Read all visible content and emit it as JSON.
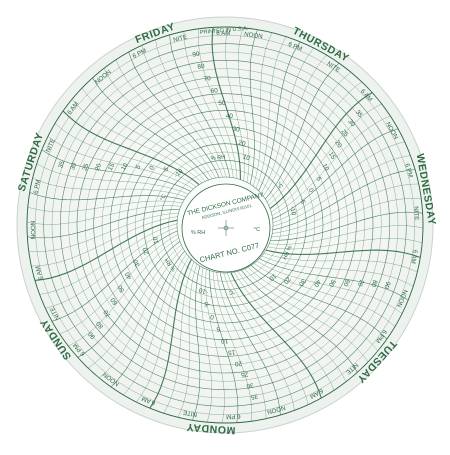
{
  "chart": {
    "printed_in": "PRINTED IN U.S.A.",
    "company": "THE DICKSON COMPANY",
    "company_sub": "ADDISON, ILLINOIS 60101",
    "chart_no": "CHART NO. C077",
    "rh_label": "% RH",
    "temp_label": "°C",
    "days": [
      "THURSDAY",
      "WEDNESDAY",
      "TUESDAY",
      "MONDAY",
      "SUNDAY",
      "SATURDAY",
      "FRIDAY"
    ],
    "hour_labels": [
      "NOON",
      "6 PM",
      "NITE",
      "6 AM"
    ],
    "rh_scale": [
      "10",
      "20",
      "30",
      "40",
      "50",
      "60",
      "70",
      "80",
      "90"
    ],
    "temp_scale": [
      "-10",
      "-5",
      "0",
      "5",
      "10",
      "15",
      "20",
      "25",
      "30",
      "35"
    ],
    "colors": {
      "ink": "#2f6b45",
      "paper": "#fbfcfa",
      "ring": "#e9efe9"
    }
  }
}
